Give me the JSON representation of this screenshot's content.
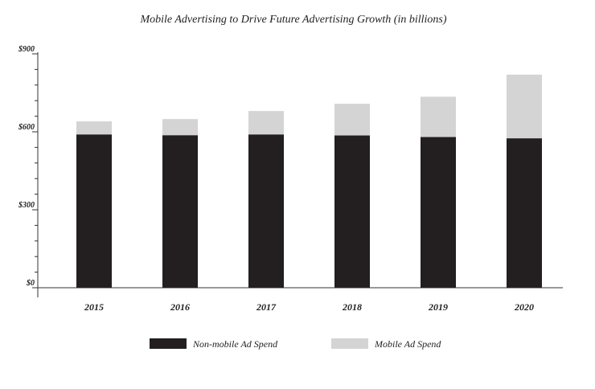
{
  "chart_data": {
    "type": "bar",
    "stacked": true,
    "title": "Mobile Advertising to Drive Future Advertising Growth (in billions)",
    "xlabel": "",
    "ylabel": "",
    "categories": [
      "2015",
      "2016",
      "2017",
      "2018",
      "2019",
      "2020"
    ],
    "series": [
      {
        "name": "Non-mobile Ad Spend",
        "color": "#231f20",
        "values": [
          590,
          587,
          590,
          586,
          580,
          575
        ]
      },
      {
        "name": "Mobile Ad Spend",
        "color": "#d4d4d4",
        "values": [
          50,
          62,
          90,
          122,
          155,
          245
        ]
      }
    ],
    "ylim": [
      0,
      900
    ],
    "yticks": [
      {
        "value": 0,
        "label": "$0"
      },
      {
        "value": 300,
        "label": "$300"
      },
      {
        "value": 600,
        "label": "$600"
      },
      {
        "value": 900,
        "label": "$900"
      }
    ],
    "minor_tick_step": 60,
    "grid": false,
    "legend_position": "bottom"
  }
}
